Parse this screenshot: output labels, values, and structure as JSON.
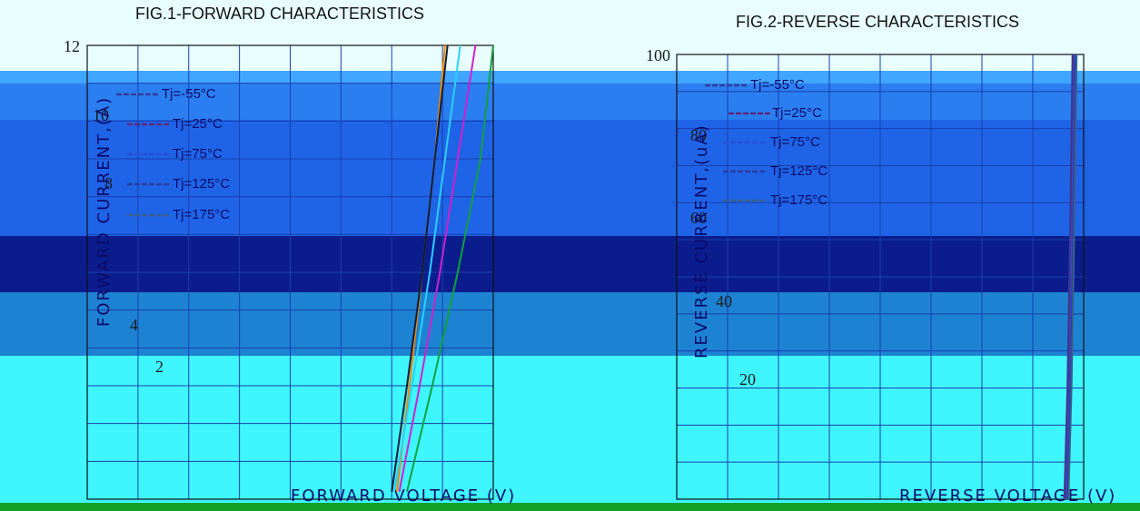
{
  "colors": {
    "background": "#ffffff",
    "header_tint": "#e9ffff",
    "band_light_blue": "#41a6ff",
    "band_mid_blue": "#2b7ef0",
    "band_royal_blue": "#1f64e6",
    "band_navy": "#0b1d8c",
    "band_teal_blue": "#1e82d2",
    "band_cyan": "#3ff6ff",
    "band_green": "#13a32b",
    "series": [
      "#2f3f9a",
      "#5b2a7a",
      "#2a4fd8",
      "#2a3da0",
      "#3a5f8a"
    ],
    "fig1_line_tops": [
      "#f08a00",
      "#0b1d3a",
      "#2ad0ff",
      "#d020d0",
      "#10a040"
    ]
  },
  "chart_data": [
    {
      "type": "line",
      "title": "FIG.1-FORWARD CHARACTERISTICS",
      "xlabel": "FORWARD VOLTAGE (V)",
      "ylabel": "FORWARD CURRENT,(A)",
      "ylim": [
        0,
        12
      ],
      "xlim": [
        0,
        8
      ],
      "y_ticks": [
        "12",
        "10",
        "8",
        "4",
        "2"
      ],
      "grid": true,
      "legend_position": "top-left",
      "series": [
        {
          "name": "Tj=-55°C",
          "x": [
            6.1,
            6.35,
            6.6,
            6.85,
            7.05
          ],
          "y": [
            0.2,
            3,
            6,
            9,
            12
          ]
        },
        {
          "name": "Tj=25°C",
          "x": [
            6.0,
            6.3,
            6.6,
            6.85,
            7.1
          ],
          "y": [
            0.2,
            3,
            6,
            9,
            12
          ]
        },
        {
          "name": "Tj=75°C",
          "x": [
            6.05,
            6.4,
            6.75,
            7.05,
            7.35
          ],
          "y": [
            0.2,
            3,
            6,
            9,
            12
          ]
        },
        {
          "name": "Tj=125°C",
          "x": [
            6.15,
            6.55,
            6.95,
            7.3,
            7.65
          ],
          "y": [
            0.2,
            3,
            6,
            9,
            12
          ]
        },
        {
          "name": "Tj=175°C",
          "x": [
            6.3,
            6.8,
            7.3,
            7.75,
            8.0
          ],
          "y": [
            0.2,
            3,
            6,
            9,
            12
          ]
        }
      ]
    },
    {
      "type": "line",
      "title": "FIG.2-REVERSE CHARACTERISTICS",
      "xlabel": "REVERSE VOLTAGE (V)",
      "ylabel": "REVERSE CURRENT,(uA)",
      "ylim": [
        0,
        100
      ],
      "xlim": [
        0,
        800
      ],
      "y_ticks": [
        "100",
        "80",
        "60",
        "40",
        "20"
      ],
      "grid": true,
      "legend_position": "top-left",
      "series": [
        {
          "name": "Tj=-55°C",
          "x": [
            762,
            768,
            772,
            775,
            778
          ],
          "y": [
            0,
            25,
            50,
            75,
            100
          ]
        },
        {
          "name": "Tj=25°C",
          "x": [
            764,
            770,
            774,
            777,
            780
          ],
          "y": [
            0,
            25,
            50,
            75,
            100
          ]
        },
        {
          "name": "Tj=75°C",
          "x": [
            766,
            772,
            776,
            779,
            782
          ],
          "y": [
            0,
            25,
            50,
            75,
            100
          ]
        },
        {
          "name": "Tj=125°C",
          "x": [
            768,
            774,
            778,
            781,
            784
          ],
          "y": [
            0,
            25,
            50,
            75,
            100
          ]
        },
        {
          "name": "Tj=175°C",
          "x": [
            770,
            776,
            780,
            783,
            786
          ],
          "y": [
            0,
            25,
            50,
            75,
            100
          ]
        }
      ]
    }
  ]
}
